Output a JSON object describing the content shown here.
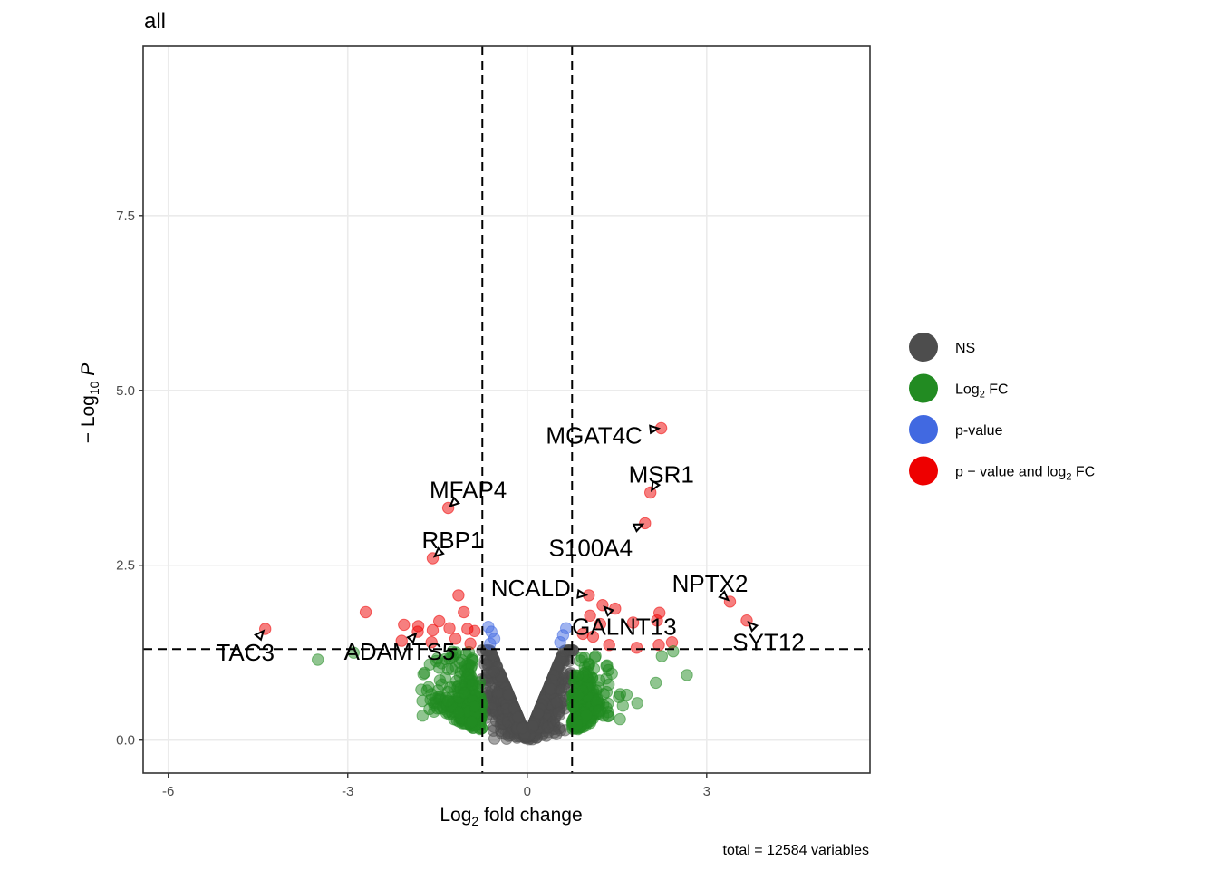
{
  "chart_data": {
    "type": "scatter",
    "title": "all",
    "xlabel": "Log2 fold change",
    "ylabel": "-Log10 P",
    "caption": "total = 12584 variables",
    "xlim": [
      -6.42,
      5.73
    ],
    "ylim": [
      -0.47,
      9.92
    ],
    "x_ticks": [
      -6,
      -3,
      0,
      3
    ],
    "x_tick_labels": [
      "-6",
      "-3",
      "0",
      "3"
    ],
    "y_ticks": [
      0,
      2.5,
      5,
      7.5
    ],
    "y_tick_labels": [
      "0.0",
      "2.5",
      "5.0",
      "7.5"
    ],
    "grid": true,
    "legend_position": "right",
    "fc_cutoff": 0.75,
    "p_cutoff_log10": 1.301,
    "total_variables": 12584,
    "categories": [
      {
        "key": "NS",
        "label": "NS",
        "color": "#4d4d4d"
      },
      {
        "key": "FC",
        "label": "Log2 FC",
        "label_main": "Log",
        "label_sub": "2",
        "label_tail": " FC",
        "color": "#228b22"
      },
      {
        "key": "P",
        "label": "p-value",
        "color": "#4169e1"
      },
      {
        "key": "FC_P",
        "label": "p - value and log2 FC",
        "label_main": "p − value and log",
        "label_sub": "2",
        "label_tail": " FC",
        "color": "#ee0000"
      }
    ],
    "labeled_points": [
      {
        "gene": "MGAT4C",
        "x": 2.24,
        "y": 4.46,
        "category": "FC_P"
      },
      {
        "gene": "MSR1",
        "x": 2.06,
        "y": 3.54,
        "category": "FC_P"
      },
      {
        "gene": "S100A4",
        "x": 1.97,
        "y": 3.1,
        "category": "FC_P"
      },
      {
        "gene": "MFAP4",
        "x": -1.32,
        "y": 3.32,
        "category": "FC_P"
      },
      {
        "gene": "RBP1",
        "x": -1.58,
        "y": 2.6,
        "category": "FC_P"
      },
      {
        "gene": "NCALD",
        "x": 1.03,
        "y": 2.07,
        "category": "FC_P"
      },
      {
        "gene": "GALNT13",
        "x": 1.26,
        "y": 1.93,
        "category": "FC_P"
      },
      {
        "gene": "NPTX2",
        "x": 3.39,
        "y": 1.98,
        "category": "FC_P"
      },
      {
        "gene": "SYT12",
        "x": 3.67,
        "y": 1.71,
        "category": "FC_P"
      },
      {
        "gene": "TAC3",
        "x": -4.38,
        "y": 1.59,
        "category": "FC_P"
      },
      {
        "gene": "ADAMTS5",
        "x": -1.83,
        "y": 1.55,
        "category": "FC_P"
      }
    ],
    "other_significant_points": [
      {
        "x": -2.7,
        "y": 1.83,
        "category": "FC_P"
      },
      {
        "x": -1.15,
        "y": 2.07,
        "category": "FC_P"
      },
      {
        "x": -1.06,
        "y": 1.83,
        "category": "FC_P"
      },
      {
        "x": -2.06,
        "y": 1.65,
        "category": "FC_P"
      },
      {
        "x": -1.82,
        "y": 1.63,
        "category": "FC_P"
      },
      {
        "x": -1.47,
        "y": 1.7,
        "category": "FC_P"
      },
      {
        "x": -1.58,
        "y": 1.57,
        "category": "FC_P"
      },
      {
        "x": -1.3,
        "y": 1.6,
        "category": "FC_P"
      },
      {
        "x": -1.0,
        "y": 1.59,
        "category": "FC_P"
      },
      {
        "x": -0.88,
        "y": 1.56,
        "category": "FC_P"
      },
      {
        "x": -2.1,
        "y": 1.42,
        "category": "FC_P"
      },
      {
        "x": -1.6,
        "y": 1.4,
        "category": "FC_P"
      },
      {
        "x": -1.2,
        "y": 1.45,
        "category": "FC_P"
      },
      {
        "x": -0.95,
        "y": 1.38,
        "category": "FC_P"
      },
      {
        "x": 1.47,
        "y": 1.88,
        "category": "FC_P"
      },
      {
        "x": 2.21,
        "y": 1.82,
        "category": "FC_P"
      },
      {
        "x": 1.05,
        "y": 1.78,
        "category": "FC_P"
      },
      {
        "x": 1.22,
        "y": 1.66,
        "category": "FC_P"
      },
      {
        "x": 1.77,
        "y": 1.68,
        "category": "FC_P"
      },
      {
        "x": 2.17,
        "y": 1.71,
        "category": "FC_P"
      },
      {
        "x": 0.93,
        "y": 1.52,
        "category": "FC_P"
      },
      {
        "x": 1.1,
        "y": 1.48,
        "category": "FC_P"
      },
      {
        "x": 1.37,
        "y": 1.36,
        "category": "FC_P"
      },
      {
        "x": 1.83,
        "y": 1.32,
        "category": "FC_P"
      },
      {
        "x": 2.2,
        "y": 1.36,
        "category": "FC_P"
      },
      {
        "x": 2.42,
        "y": 1.4,
        "category": "FC_P"
      },
      {
        "x": -0.65,
        "y": 1.62,
        "category": "P"
      },
      {
        "x": -0.6,
        "y": 1.55,
        "category": "P"
      },
      {
        "x": -0.55,
        "y": 1.45,
        "category": "P"
      },
      {
        "x": -0.62,
        "y": 1.38,
        "category": "P"
      },
      {
        "x": 0.6,
        "y": 1.5,
        "category": "P"
      },
      {
        "x": 0.55,
        "y": 1.4,
        "category": "P"
      },
      {
        "x": 0.65,
        "y": 1.6,
        "category": "P"
      },
      {
        "x": -3.5,
        "y": 1.15,
        "category": "FC"
      },
      {
        "x": -2.9,
        "y": 1.25,
        "category": "FC"
      },
      {
        "x": -1.77,
        "y": 0.72,
        "category": "FC"
      },
      {
        "x": -1.75,
        "y": 0.35,
        "category": "FC"
      },
      {
        "x": 2.67,
        "y": 0.93,
        "category": "FC"
      },
      {
        "x": 2.25,
        "y": 1.2,
        "category": "FC"
      },
      {
        "x": 2.44,
        "y": 1.27,
        "category": "FC"
      },
      {
        "x": 1.84,
        "y": 0.53,
        "category": "FC"
      },
      {
        "x": 2.15,
        "y": 0.82,
        "category": "FC"
      },
      {
        "x": 1.55,
        "y": 0.3,
        "category": "FC"
      }
    ]
  }
}
